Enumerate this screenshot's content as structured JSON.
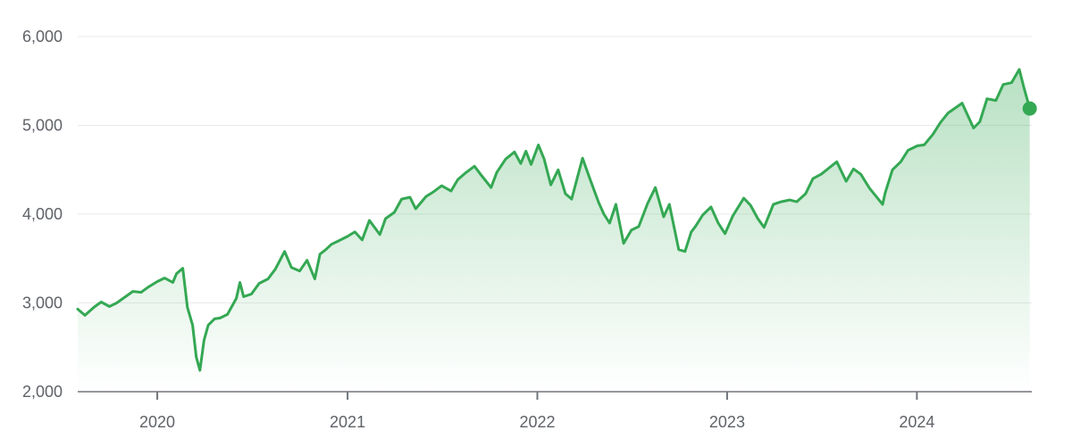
{
  "chart_data": {
    "type": "area",
    "title": "",
    "xlabel": "",
    "ylabel": "",
    "xlim": [
      "2019-08-01",
      "2024-08-09"
    ],
    "ylim": [
      2000,
      6000
    ],
    "y_ticks": [
      {
        "value": 6000,
        "label": "6,000"
      },
      {
        "value": 5000,
        "label": "5,000"
      },
      {
        "value": 4000,
        "label": "4,000"
      },
      {
        "value": 3000,
        "label": "3,000"
      },
      {
        "value": 2000,
        "label": "2,000"
      }
    ],
    "x_ticks": [
      {
        "date": "2020-01-01",
        "label": "2020"
      },
      {
        "date": "2021-01-01",
        "label": "2021"
      },
      {
        "date": "2022-01-01",
        "label": "2022"
      },
      {
        "date": "2023-01-01",
        "label": "2023"
      },
      {
        "date": "2024-01-01",
        "label": "2024"
      }
    ],
    "grid": true,
    "legend": "none",
    "colors": {
      "line": "#34a853",
      "fill": "#34a853",
      "grid": "#e8eaed",
      "axis": "#70757a",
      "tick_text": "#5f6368"
    },
    "series": [
      {
        "points": [
          [
            "2019-08-01",
            2930
          ],
          [
            "2019-08-15",
            2860
          ],
          [
            "2019-09-01",
            2950
          ],
          [
            "2019-09-15",
            3010
          ],
          [
            "2019-10-01",
            2960
          ],
          [
            "2019-10-15",
            3000
          ],
          [
            "2019-11-01",
            3070
          ],
          [
            "2019-11-15",
            3130
          ],
          [
            "2019-12-01",
            3120
          ],
          [
            "2019-12-15",
            3180
          ],
          [
            "2020-01-01",
            3240
          ],
          [
            "2020-01-15",
            3280
          ],
          [
            "2020-01-31",
            3230
          ],
          [
            "2020-02-07",
            3330
          ],
          [
            "2020-02-19",
            3390
          ],
          [
            "2020-02-28",
            2950
          ],
          [
            "2020-03-09",
            2750
          ],
          [
            "2020-03-16",
            2390
          ],
          [
            "2020-03-23",
            2240
          ],
          [
            "2020-03-31",
            2580
          ],
          [
            "2020-04-08",
            2750
          ],
          [
            "2020-04-20",
            2820
          ],
          [
            "2020-05-01",
            2830
          ],
          [
            "2020-05-15",
            2870
          ],
          [
            "2020-06-01",
            3050
          ],
          [
            "2020-06-08",
            3230
          ],
          [
            "2020-06-15",
            3070
          ],
          [
            "2020-06-30",
            3100
          ],
          [
            "2020-07-15",
            3220
          ],
          [
            "2020-08-01",
            3270
          ],
          [
            "2020-08-15",
            3380
          ],
          [
            "2020-09-02",
            3580
          ],
          [
            "2020-09-15",
            3400
          ],
          [
            "2020-10-01",
            3360
          ],
          [
            "2020-10-15",
            3480
          ],
          [
            "2020-10-30",
            3270
          ],
          [
            "2020-11-09",
            3550
          ],
          [
            "2020-11-20",
            3600
          ],
          [
            "2020-12-01",
            3660
          ],
          [
            "2020-12-15",
            3700
          ],
          [
            "2021-01-01",
            3750
          ],
          [
            "2021-01-15",
            3800
          ],
          [
            "2021-01-29",
            3710
          ],
          [
            "2021-02-12",
            3930
          ],
          [
            "2021-03-04",
            3770
          ],
          [
            "2021-03-15",
            3950
          ],
          [
            "2021-04-01",
            4020
          ],
          [
            "2021-04-15",
            4170
          ],
          [
            "2021-05-01",
            4190
          ],
          [
            "2021-05-12",
            4060
          ],
          [
            "2021-06-01",
            4200
          ],
          [
            "2021-06-15",
            4250
          ],
          [
            "2021-07-01",
            4320
          ],
          [
            "2021-07-19",
            4260
          ],
          [
            "2021-08-01",
            4390
          ],
          [
            "2021-08-15",
            4460
          ],
          [
            "2021-09-02",
            4540
          ],
          [
            "2021-09-15",
            4440
          ],
          [
            "2021-10-04",
            4300
          ],
          [
            "2021-10-15",
            4470
          ],
          [
            "2021-11-01",
            4620
          ],
          [
            "2021-11-18",
            4700
          ],
          [
            "2021-11-30",
            4570
          ],
          [
            "2021-12-10",
            4710
          ],
          [
            "2021-12-20",
            4560
          ],
          [
            "2022-01-03",
            4780
          ],
          [
            "2022-01-14",
            4620
          ],
          [
            "2022-01-27",
            4330
          ],
          [
            "2022-02-10",
            4500
          ],
          [
            "2022-02-24",
            4230
          ],
          [
            "2022-03-08",
            4170
          ],
          [
            "2022-03-29",
            4630
          ],
          [
            "2022-04-12",
            4400
          ],
          [
            "2022-04-29",
            4130
          ],
          [
            "2022-05-09",
            4000
          ],
          [
            "2022-05-20",
            3900
          ],
          [
            "2022-06-01",
            4110
          ],
          [
            "2022-06-16",
            3670
          ],
          [
            "2022-07-01",
            3820
          ],
          [
            "2022-07-15",
            3860
          ],
          [
            "2022-08-01",
            4120
          ],
          [
            "2022-08-16",
            4300
          ],
          [
            "2022-09-01",
            3970
          ],
          [
            "2022-09-12",
            4110
          ],
          [
            "2022-09-30",
            3600
          ],
          [
            "2022-10-12",
            3580
          ],
          [
            "2022-10-24",
            3800
          ],
          [
            "2022-11-01",
            3860
          ],
          [
            "2022-11-15",
            3990
          ],
          [
            "2022-12-01",
            4080
          ],
          [
            "2022-12-15",
            3900
          ],
          [
            "2022-12-28",
            3780
          ],
          [
            "2023-01-12",
            3980
          ],
          [
            "2023-02-02",
            4180
          ],
          [
            "2023-02-15",
            4100
          ],
          [
            "2023-03-01",
            3950
          ],
          [
            "2023-03-13",
            3850
          ],
          [
            "2023-03-31",
            4110
          ],
          [
            "2023-04-15",
            4140
          ],
          [
            "2023-05-01",
            4160
          ],
          [
            "2023-05-15",
            4140
          ],
          [
            "2023-06-01",
            4230
          ],
          [
            "2023-06-15",
            4400
          ],
          [
            "2023-07-01",
            4450
          ],
          [
            "2023-07-31",
            4590
          ],
          [
            "2023-08-18",
            4370
          ],
          [
            "2023-09-01",
            4510
          ],
          [
            "2023-09-15",
            4450
          ],
          [
            "2023-10-02",
            4290
          ],
          [
            "2023-10-27",
            4110
          ],
          [
            "2023-11-01",
            4240
          ],
          [
            "2023-11-15",
            4500
          ],
          [
            "2023-12-01",
            4590
          ],
          [
            "2023-12-15",
            4720
          ],
          [
            "2024-01-02",
            4770
          ],
          [
            "2024-01-15",
            4780
          ],
          [
            "2024-02-01",
            4900
          ],
          [
            "2024-02-15",
            5030
          ],
          [
            "2024-03-01",
            5140
          ],
          [
            "2024-03-28",
            5250
          ],
          [
            "2024-04-19",
            4970
          ],
          [
            "2024-05-01",
            5040
          ],
          [
            "2024-05-15",
            5300
          ],
          [
            "2024-06-01",
            5280
          ],
          [
            "2024-06-15",
            5460
          ],
          [
            "2024-07-01",
            5480
          ],
          [
            "2024-07-16",
            5630
          ],
          [
            "2024-07-25",
            5420
          ],
          [
            "2024-08-05",
            5190
          ]
        ]
      }
    ]
  }
}
